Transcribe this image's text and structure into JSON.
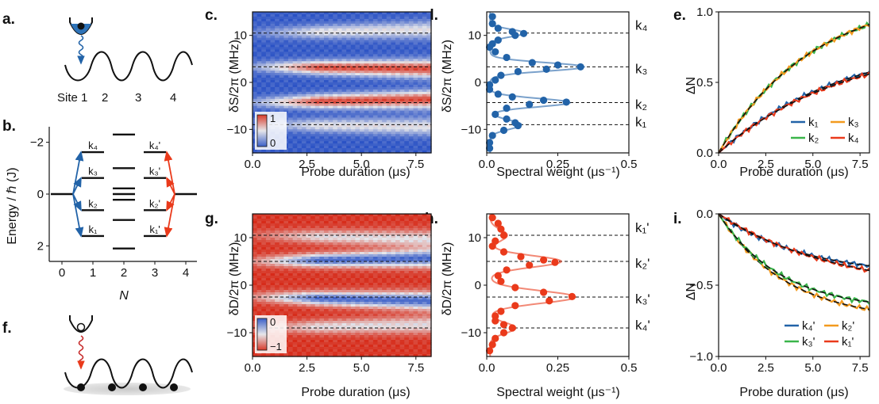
{
  "panel_labels": {
    "a": "a.",
    "b": "b.",
    "c": "c.",
    "d": "d.",
    "e": "e.",
    "f": "f.",
    "g": "g.",
    "h": "h.",
    "i": "i."
  },
  "colors": {
    "blue": "#2263a8",
    "red": "#ea3a1b",
    "green": "#3ab54a",
    "orange": "#f39a1e",
    "heat_low": "#3b5fc8",
    "heat_mid": "#e6e6ea",
    "heat_high": "#d83a2a"
  },
  "panel_a": {
    "site_label": "Site 1",
    "site_numbers": [
      "2",
      "3",
      "4"
    ]
  },
  "panel_b": {
    "ylabel": "Energy / ℏ (J)",
    "xlabel": "N",
    "xticks": [
      "0",
      "1",
      "2",
      "3",
      "4"
    ],
    "yticks": [
      "−2",
      "0",
      "2"
    ],
    "ylim": [
      -2.6,
      2.6
    ],
    "level_labels_left": [
      "k₄",
      "k₃",
      "k₂",
      "k₁"
    ],
    "level_labels_right": [
      "k₄'",
      "k₃'",
      "k₂'",
      "k₁'"
    ],
    "levels": {
      "N0": [
        0
      ],
      "N1": [
        1.62,
        0.62,
        -0.62,
        -1.62
      ],
      "N2": [
        2.3,
        1.0,
        0.22,
        0.0,
        -0.22,
        -1.0,
        -2.1
      ],
      "N3": [
        1.62,
        0.62,
        -0.62,
        -1.62
      ],
      "N4": [
        0
      ]
    }
  },
  "panel_c": {
    "ylabel": "δS/2π (MHz)",
    "xlabel": "Probe duration (μs)",
    "xticks": [
      "0.0",
      "2.5",
      "5.0",
      "7.5"
    ],
    "yticks": [
      "10",
      "0",
      "−10"
    ],
    "xlim": [
      0,
      8.2
    ],
    "ylim": [
      -15,
      15
    ],
    "colorbar_ticks": [
      "1",
      "0"
    ],
    "dashed_lines": [
      10.5,
      3.3,
      -4.3,
      -9.0
    ]
  },
  "panel_d": {
    "ylabel": "δS/2π (MHz)",
    "xlabel": "Spectral weight (μs⁻¹)",
    "xticks": [
      "0.0",
      "0.25",
      "0.5"
    ],
    "yticks": [
      "10",
      "0",
      "−10"
    ],
    "xlim": [
      0,
      0.5
    ],
    "ylim": [
      -15,
      15
    ],
    "dashed_lines": [
      10.5,
      3.3,
      -4.3,
      -9.0
    ],
    "k_labels": [
      "k₄",
      "k₃",
      "k₂",
      "k₁"
    ]
  },
  "panel_e": {
    "ylabel": "ΔN",
    "xlabel": "Probe duration (μs)",
    "xticks": [
      "0.0",
      "2.5",
      "5.0",
      "7.5"
    ],
    "yticks": [
      "0.0",
      "0.5",
      "1.0"
    ],
    "xlim": [
      0,
      8
    ],
    "ylim": [
      0,
      1.0
    ],
    "legend": [
      "k₁",
      "k₃",
      "k₂",
      "k₄"
    ]
  },
  "panel_f": {},
  "panel_g": {
    "ylabel": "δD/2π (MHz)",
    "xlabel": "Probe duration (μs)",
    "xticks": [
      "0.0",
      "2.5",
      "5.0",
      "7.5"
    ],
    "yticks": [
      "10",
      "0",
      "−10"
    ],
    "xlim": [
      0,
      8.2
    ],
    "ylim": [
      -15,
      15
    ],
    "colorbar_ticks": [
      "0",
      "−1"
    ],
    "dashed_lines": [
      10.5,
      5.0,
      -2.5,
      -9.0
    ]
  },
  "panel_h": {
    "ylabel": "δD/2π (MHz)",
    "xlabel": "Spectral weight (μs⁻¹)",
    "xticks": [
      "0.0",
      "0.25",
      "0.5"
    ],
    "yticks": [
      "10",
      "0",
      "−10"
    ],
    "xlim": [
      0,
      0.5
    ],
    "ylim": [
      -15,
      15
    ],
    "dashed_lines": [
      10.5,
      5.0,
      -2.5,
      -9.0
    ],
    "k_labels": [
      "k₁'",
      "k₂'",
      "k₃'",
      "k₄'"
    ]
  },
  "panel_i": {
    "ylabel": "ΔN",
    "xlabel": "Probe duration (μs)",
    "xticks": [
      "0.0",
      "2.5",
      "5.0",
      "7.5"
    ],
    "yticks": [
      "0.0",
      "−0.5",
      "−1.0"
    ],
    "xlim": [
      0,
      8
    ],
    "ylim": [
      -1.0,
      0
    ],
    "legend": [
      "k₄'",
      "k₂'",
      "k₃'",
      "k₁'"
    ]
  },
  "chart_data": [
    {
      "type": "heatmap",
      "panel": "c",
      "xlabel": "Probe duration (μs)",
      "ylabel": "δS/2π (MHz)",
      "xlim": [
        0,
        8.2
      ],
      "ylim": [
        -15,
        15
      ],
      "colorbar": {
        "min": 0,
        "max": 1
      },
      "peaks_MHz": [
        10.5,
        3.3,
        -4.3,
        -9.0
      ]
    },
    {
      "type": "scatter",
      "panel": "d",
      "xlabel": "Spectral weight (μs⁻¹)",
      "ylabel": "δS/2π (MHz)",
      "xlim": [
        0,
        0.5
      ],
      "ylim": [
        -15,
        15
      ],
      "series": [
        {
          "points": [
            [
              0.02,
              14
            ],
            [
              0.02,
              12.5
            ],
            [
              0.04,
              11.5
            ],
            [
              0.09,
              10.8
            ],
            [
              0.13,
              10.4
            ],
            [
              0.1,
              10
            ],
            [
              0.04,
              9
            ],
            [
              0.02,
              8.2
            ],
            [
              0.01,
              7.5
            ],
            [
              0.03,
              6.5
            ],
            [
              0.07,
              5.3
            ],
            [
              0.16,
              4.2
            ],
            [
              0.25,
              3.7
            ],
            [
              0.33,
              3.3
            ],
            [
              0.21,
              2.8
            ],
            [
              0.11,
              2.3
            ],
            [
              0.05,
              1.5
            ],
            [
              0.03,
              0.5
            ],
            [
              0.01,
              -0.5
            ],
            [
              0.01,
              -1.5
            ],
            [
              0.04,
              -2.5
            ],
            [
              0.09,
              -3.1
            ],
            [
              0.2,
              -3.8
            ],
            [
              0.28,
              -4.2
            ],
            [
              0.15,
              -4.7
            ],
            [
              0.07,
              -5.5
            ],
            [
              0.03,
              -6.8
            ],
            [
              0.07,
              -7.8
            ],
            [
              0.1,
              -8.6
            ],
            [
              0.11,
              -9.2
            ],
            [
              0.06,
              -10.2
            ],
            [
              0.02,
              -11.3
            ],
            [
              0.01,
              -12.8
            ],
            [
              0.01,
              -14
            ]
          ],
          "fit_peaks": [
            [
              10.5,
              0.12,
              0.8
            ],
            [
              3.3,
              0.33,
              0.9
            ],
            [
              -4.3,
              0.28,
              0.9
            ],
            [
              -9.0,
              0.11,
              1.0
            ]
          ]
        }
      ]
    },
    {
      "type": "line",
      "panel": "e",
      "xlabel": "Probe duration (μs)",
      "ylabel": "ΔN",
      "xlim": [
        0,
        8
      ],
      "ylim": [
        0,
        1.0
      ],
      "series": [
        {
          "name": "k₁",
          "color": "#2263a8",
          "amplitude": 0.82,
          "rate": 0.15
        },
        {
          "name": "k₂",
          "color": "#3ab54a",
          "amplitude": 1.14,
          "rate": 0.2
        },
        {
          "name": "k₃",
          "color": "#f39a1e",
          "amplitude": 1.14,
          "rate": 0.2
        },
        {
          "name": "k₄",
          "color": "#ea3a1b",
          "amplitude": 0.8,
          "rate": 0.15
        }
      ]
    },
    {
      "type": "heatmap",
      "panel": "g",
      "xlabel": "Probe duration (μs)",
      "ylabel": "δD/2π (MHz)",
      "xlim": [
        0,
        8.2
      ],
      "ylim": [
        -15,
        15
      ],
      "colorbar": {
        "min": -1,
        "max": 0
      },
      "peaks_MHz": [
        10.5,
        5.0,
        -2.5,
        -9.0
      ]
    },
    {
      "type": "scatter",
      "panel": "h",
      "xlabel": "Spectral weight (μs⁻¹)",
      "ylabel": "δD/2π (MHz)",
      "xlim": [
        0,
        0.5
      ],
      "ylim": [
        -15,
        15
      ],
      "series": [
        {
          "points": [
            [
              0.02,
              14.2
            ],
            [
              0.04,
              13
            ],
            [
              0.05,
              11.8
            ],
            [
              0.06,
              10.5
            ],
            [
              0.03,
              9.3
            ],
            [
              0.02,
              8.2
            ],
            [
              0.06,
              7
            ],
            [
              0.12,
              6
            ],
            [
              0.2,
              5.3
            ],
            [
              0.24,
              4.8
            ],
            [
              0.15,
              4.2
            ],
            [
              0.07,
              3.2
            ],
            [
              0.04,
              2
            ],
            [
              0.05,
              0.8
            ],
            [
              0.1,
              -0.5
            ],
            [
              0.2,
              -1.5
            ],
            [
              0.3,
              -2.4
            ],
            [
              0.22,
              -3.3
            ],
            [
              0.1,
              -4.3
            ],
            [
              0.05,
              -5.5
            ],
            [
              0.03,
              -6.5
            ],
            [
              0.03,
              -7.5
            ],
            [
              0.06,
              -8.3
            ],
            [
              0.09,
              -9
            ],
            [
              0.06,
              -10
            ],
            [
              0.03,
              -11.2
            ],
            [
              0.02,
              -12.5
            ],
            [
              0.01,
              -13.8
            ]
          ],
          "fit_peaks": [
            [
              10.5,
              0.06,
              1.2
            ],
            [
              5.0,
              0.25,
              1.2
            ],
            [
              -2.5,
              0.3,
              1.3
            ],
            [
              -9.0,
              0.09,
              1.1
            ]
          ]
        }
      ]
    },
    {
      "type": "line",
      "panel": "i",
      "xlabel": "Probe duration (μs)",
      "ylabel": "ΔN",
      "xlim": [
        0,
        8
      ],
      "ylim": [
        -1.0,
        0
      ],
      "series": [
        {
          "name": "k₄'",
          "color": "#2263a8",
          "amplitude": -0.44,
          "rate": 0.22
        },
        {
          "name": "k₂'",
          "color": "#f39a1e",
          "amplitude": -0.75,
          "rate": 0.28
        },
        {
          "name": "k₃'",
          "color": "#3ab54a",
          "amplitude": -0.68,
          "rate": 0.3
        },
        {
          "name": "k₁'",
          "color": "#ea3a1b",
          "amplitude": -0.55,
          "rate": 0.16
        }
      ]
    }
  ]
}
